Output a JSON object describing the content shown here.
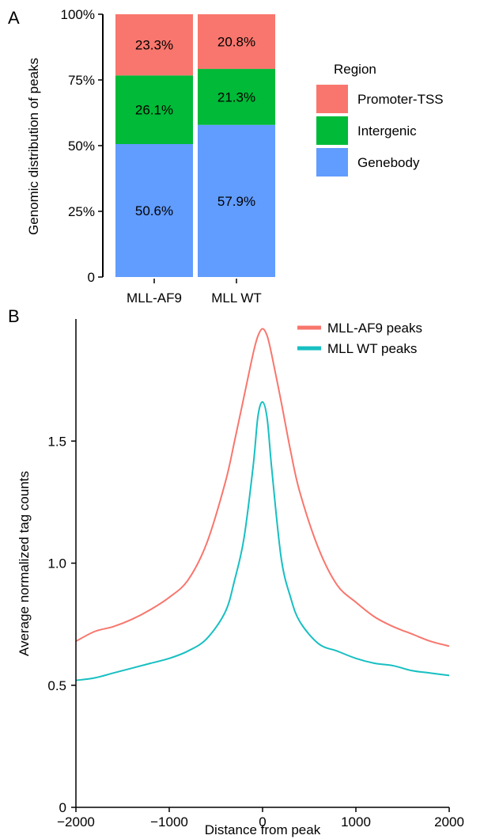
{
  "chart_data": [
    {
      "type": "bar",
      "stacked": true,
      "panel": "A",
      "categories": [
        "MLL-AF9",
        "MLL WT"
      ],
      "series": [
        {
          "name": "Genebody",
          "values": [
            50.6,
            57.9
          ],
          "labels": [
            "50.6%",
            "57.9%"
          ],
          "color": "#619cff"
        },
        {
          "name": "Intergenic",
          "values": [
            26.1,
            21.3
          ],
          "labels": [
            "26.1%",
            "21.3%"
          ],
          "color": "#00ba38"
        },
        {
          "name": "Promoter-TSS",
          "values": [
            23.3,
            20.8
          ],
          "labels": [
            "23.3%",
            "20.8%"
          ],
          "color": "#f8766d"
        }
      ],
      "ylabel": "Genomic distribution of peaks",
      "ylim": [
        0,
        100
      ],
      "yticks": [
        0,
        25,
        50,
        75,
        100
      ],
      "ytick_labels": [
        "0",
        "25%",
        "50%",
        "75%",
        "100%"
      ],
      "legend_title": "Region",
      "legend_order": [
        "Promoter-TSS",
        "Intergenic",
        "Genebody"
      ],
      "legend_position": "right"
    },
    {
      "type": "line",
      "panel": "B",
      "xlabel": "Distance from peak",
      "ylabel": "Average normalized tag counts",
      "xlim": [
        -2000,
        2000
      ],
      "ylim": [
        0,
        2.0
      ],
      "xticks": [
        -2000,
        -1000,
        0,
        1000,
        2000
      ],
      "xtick_labels": [
        "−2000",
        "−1000",
        "0",
        "1000",
        "2000"
      ],
      "yticks": [
        0,
        0.5,
        1.0,
        1.5
      ],
      "ytick_labels": [
        "0",
        "0.5",
        "1.0",
        "1.5"
      ],
      "legend_position": "top-right",
      "series": [
        {
          "name": "MLL-AF9 peaks",
          "color": "#f8766d",
          "x": [
            -2000,
            -1800,
            -1600,
            -1400,
            -1200,
            -1000,
            -800,
            -600,
            -400,
            -300,
            -200,
            -100,
            -50,
            0,
            50,
            100,
            200,
            300,
            400,
            600,
            800,
            1000,
            1200,
            1400,
            1600,
            1800,
            2000
          ],
          "y": [
            0.68,
            0.72,
            0.74,
            0.77,
            0.81,
            0.86,
            0.93,
            1.08,
            1.33,
            1.5,
            1.68,
            1.86,
            1.93,
            1.96,
            1.93,
            1.85,
            1.66,
            1.46,
            1.29,
            1.06,
            0.91,
            0.84,
            0.78,
            0.74,
            0.71,
            0.68,
            0.66
          ]
        },
        {
          "name": "MLL WT peaks",
          "color": "#17bfc2",
          "x": [
            -2000,
            -1800,
            -1600,
            -1400,
            -1200,
            -1000,
            -800,
            -600,
            -400,
            -300,
            -200,
            -100,
            -50,
            0,
            50,
            100,
            200,
            300,
            400,
            600,
            800,
            1000,
            1200,
            1400,
            1600,
            1800,
            2000
          ],
          "y": [
            0.52,
            0.53,
            0.55,
            0.57,
            0.59,
            0.61,
            0.64,
            0.69,
            0.8,
            0.93,
            1.1,
            1.4,
            1.6,
            1.66,
            1.59,
            1.38,
            1.02,
            0.86,
            0.76,
            0.67,
            0.64,
            0.61,
            0.59,
            0.58,
            0.56,
            0.55,
            0.54
          ]
        }
      ]
    }
  ]
}
